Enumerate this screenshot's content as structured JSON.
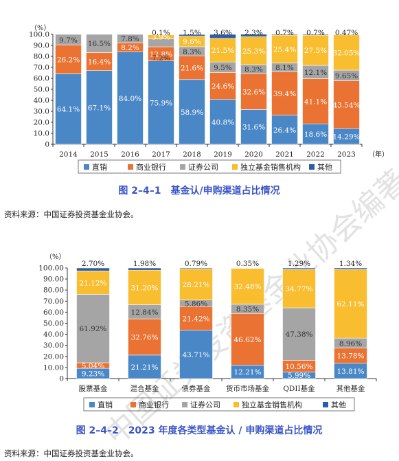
{
  "colors": {
    "直销": "#4a87c6",
    "商业银行": "#ea7232",
    "证券公司": "#a5a5a5",
    "独立基金销售机构": "#f9bd30",
    "其他": "#2c5ea8"
  },
  "chart_data": [
    {
      "type": "bar",
      "stacked": true,
      "unit": "（%）",
      "xunit": "（年）",
      "ylim": [
        0,
        100
      ],
      "yticks": [
        "0",
        "10.0",
        "20.0",
        "30.0",
        "40.0",
        "50.0",
        "60.0",
        "70.0",
        "80.0",
        "90.0",
        "100.0"
      ],
      "categories": [
        "2014",
        "2015",
        "2016",
        "2017",
        "2018",
        "2019",
        "2020",
        "2021",
        "2022",
        "2023"
      ],
      "series": [
        {
          "name": "直销",
          "values": [
            64.1,
            67.1,
            84.0,
            75.9,
            58.9,
            40.8,
            31.6,
            26.4,
            18.6,
            14.29
          ],
          "labels": [
            "64.1%",
            "67.1%",
            "84.0%",
            "75.9%",
            "58.9%",
            "40.8%",
            "31.6%",
            "26.4%",
            "18.6%",
            "14.29%"
          ]
        },
        {
          "name": "商业银行",
          "values": [
            26.2,
            16.4,
            8.2,
            12.8,
            21.6,
            24.6,
            32.6,
            39.4,
            41.1,
            43.54
          ],
          "labels": [
            "26.2%",
            "16.4%",
            "8.2%",
            "12.8%",
            "21.6%",
            "24.6%",
            "32.6%",
            "39.4%",
            "41.1%",
            "43.54%"
          ]
        },
        {
          "name": "证券公司",
          "values": [
            9.7,
            16.5,
            7.8,
            7.2,
            8.3,
            9.5,
            8.3,
            8.1,
            12.1,
            9.65
          ],
          "labels": [
            "9.7%",
            "16.5%",
            "7.8%",
            "7.2%",
            "8.3%",
            "9.5%",
            "8.3%",
            "8.1%",
            "12.1%",
            "9.65%"
          ]
        },
        {
          "name": "独立基金销售机构",
          "values": [
            0,
            0,
            0,
            3.9,
            9.6,
            21.5,
            25.3,
            25.4,
            27.5,
            32.05
          ],
          "labels": [
            "",
            "",
            "",
            "3.9%",
            "9.6%",
            "21.5%",
            "25.3%",
            "25.4%",
            "27.5%",
            "32.05%"
          ]
        },
        {
          "name": "其他",
          "values": [
            0,
            0,
            0,
            0.1,
            1.5,
            3.6,
            2.3,
            0.7,
            0.7,
            0.47
          ],
          "labels": [
            "",
            "",
            "",
            "0.1%",
            "1.5%",
            "3.6%",
            "2.3%",
            "0.7%",
            "0.7%",
            "0.47%"
          ]
        }
      ],
      "caption": "图 2–4–1　基金认/申购渠道占比情况",
      "legend": [
        "直销",
        "商业银行",
        "证券公司",
        "独立基金销售机构",
        "其他"
      ],
      "legend_position": "bottom"
    },
    {
      "type": "bar",
      "stacked": true,
      "unit": "（%）",
      "ylim": [
        0,
        100
      ],
      "yticks": [
        "0",
        "10.00",
        "20.00",
        "30.00",
        "40.00",
        "50.00",
        "60.00",
        "70.00",
        "80.00",
        "90.00",
        "100.00"
      ],
      "categories": [
        "股票基金",
        "混合基金",
        "债券基金",
        "货币市场基金",
        "QDII基金",
        "其他基金"
      ],
      "series": [
        {
          "name": "直销",
          "values": [
            9.23,
            21.21,
            43.71,
            12.21,
            5.99,
            13.81
          ],
          "labels": [
            "9.23%",
            "21.21%",
            "43.71%",
            "12.21%",
            "5.99%",
            "13.81%"
          ]
        },
        {
          "name": "商业银行",
          "values": [
            5.04,
            32.76,
            21.42,
            46.62,
            10.56,
            13.78
          ],
          "labels": [
            "5.04%",
            "32.76%",
            "21.42%",
            "46.62%",
            "10.56%",
            "13.78%"
          ]
        },
        {
          "name": "证券公司",
          "values": [
            61.92,
            12.84,
            5.86,
            8.35,
            47.38,
            8.96
          ],
          "labels": [
            "61.92%",
            "12.84%",
            "5.86%",
            "8.35%",
            "47.38%",
            "8.96%"
          ]
        },
        {
          "name": "独立基金销售机构",
          "values": [
            21.12,
            31.2,
            28.21,
            32.48,
            34.77,
            62.11
          ],
          "labels": [
            "21.12%",
            "31.20%",
            "28.21%",
            "32.48%",
            "34.77%",
            "62.11%"
          ]
        },
        {
          "name": "其他",
          "values": [
            2.7,
            1.98,
            0.79,
            0.35,
            1.29,
            1.34
          ],
          "labels": [
            "2.70%",
            "1.98%",
            "0.79%",
            "0.35%",
            "1.29%",
            "1.34%"
          ]
        }
      ],
      "caption": "图 2–4–2　2023 年度各类型基金认 / 申购渠道占比情况",
      "legend": [
        "直销",
        "商业银行",
        "证券公司",
        "独立基金销售机构",
        "其他"
      ],
      "legend_position": "bottom"
    }
  ],
  "source_1": "资料来源：中国证券投资基金业协会。",
  "source_2": "资料来源：中国证券投资基金业协会。",
  "watermark": "中国证券投资基金业协会编著"
}
